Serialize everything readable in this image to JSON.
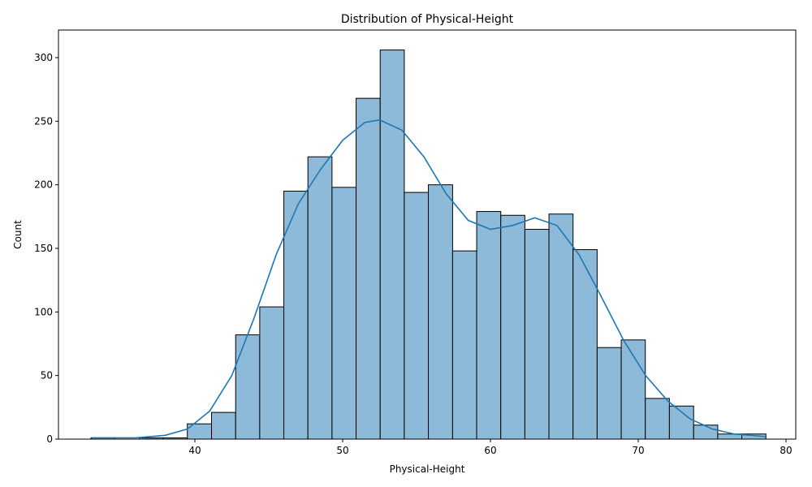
{
  "chart_data": {
    "type": "histogram",
    "title": "Distribution of Physical-Height",
    "x_label": "Physical-Height",
    "y_label": "Count",
    "bins": [
      32.97,
      34.6,
      36.23,
      37.86,
      39.49,
      41.13,
      42.76,
      44.39,
      46.02,
      47.65,
      49.28,
      50.91,
      52.54,
      54.17,
      55.8,
      57.44,
      59.07,
      60.7,
      62.33,
      63.96,
      65.59,
      67.22,
      68.85,
      70.48,
      72.11,
      73.75,
      75.38,
      77.01,
      78.64
    ],
    "counts": [
      1,
      0,
      1,
      1,
      12,
      21,
      82,
      104,
      195,
      222,
      198,
      268,
      306,
      194,
      200,
      148,
      179,
      176,
      165,
      177,
      149,
      72,
      78,
      32,
      26,
      11,
      4,
      4
    ],
    "color": "#8ebad9",
    "edge_color": "#000000",
    "kde": {
      "color": "#1f77b4",
      "x": [
        33,
        36,
        38,
        39.5,
        41,
        42.5,
        44,
        45.5,
        47,
        48.5,
        50,
        51.5,
        52.5,
        54,
        55.5,
        57,
        58.5,
        60,
        61.5,
        63,
        64.5,
        66,
        67.5,
        69,
        70.5,
        72,
        73.5,
        75,
        76.5,
        78.6
      ],
      "y": [
        1,
        1,
        3,
        8,
        22,
        50,
        95,
        145,
        185,
        212,
        235,
        249,
        251,
        243,
        222,
        193,
        172,
        165,
        168,
        174,
        168,
        145,
        112,
        78,
        50,
        30,
        16,
        8,
        4,
        2
      ]
    },
    "xlim": [
      30.77,
      80.66
    ],
    "ylim": [
      0,
      321.7
    ],
    "xticks": [
      40,
      50,
      60,
      70,
      80
    ],
    "yticks": [
      0,
      50,
      100,
      150,
      200,
      250,
      300
    ]
  }
}
